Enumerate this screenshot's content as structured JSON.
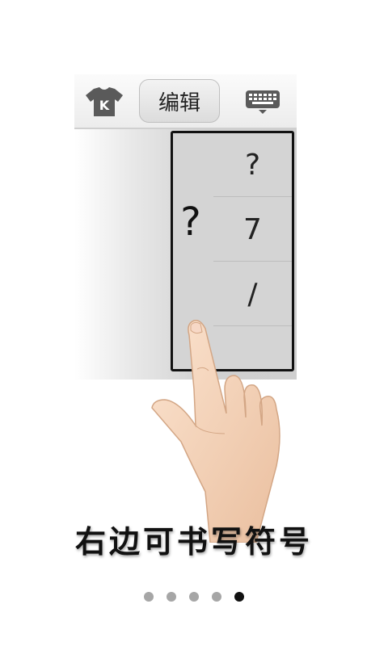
{
  "toolbar": {
    "skin_icon": "tshirt-k-icon",
    "skin_letter": "K",
    "edit_label": "编辑",
    "keyboard_icon": "keyboard-icon"
  },
  "panel": {
    "written_char": "?",
    "candidates": [
      "?",
      "7",
      "/",
      ""
    ]
  },
  "caption": "右边可书写符号",
  "pager": {
    "count": 5,
    "active_index": 4
  },
  "colors": {
    "background": "#ffffff",
    "dot_inactive": "#a6a6a6",
    "dot_active": "#111111"
  }
}
